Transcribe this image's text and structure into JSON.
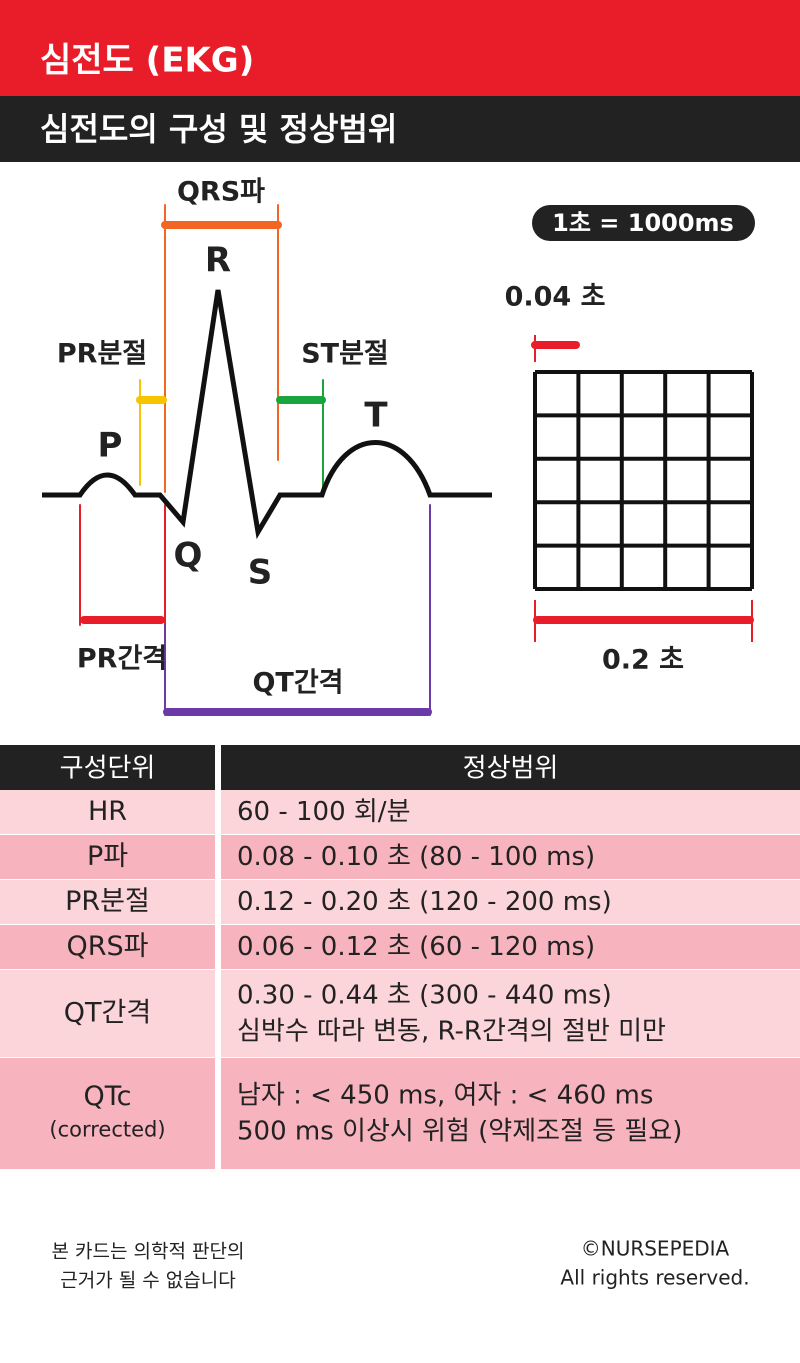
{
  "header": {
    "title": "심전도 (EKG)",
    "subtitle": "심전도의 구성 및 정상범위"
  },
  "diagram": {
    "qrs_wave": "QRS파",
    "r": "R",
    "pr_segment": "PR분절",
    "st_segment": "ST분절",
    "p": "P",
    "t": "T",
    "q": "Q",
    "s": "S",
    "pr_interval": "PR간격",
    "qt_interval": "QT간격",
    "scale": "1초 = 1000ms",
    "small_box": "0.04 초",
    "large_box": "0.2 초"
  },
  "table": {
    "columns": [
      "구성단위",
      "정상범위"
    ],
    "rows": [
      {
        "component": [
          "HR"
        ],
        "range": [
          "60 - 100 회/분"
        ]
      },
      {
        "component": [
          "P파"
        ],
        "range": [
          "0.08 - 0.10  초 (80 - 100 ms)"
        ]
      },
      {
        "component": [
          "PR분절"
        ],
        "range": [
          "0.12 - 0.20  초 (120 - 200 ms)"
        ]
      },
      {
        "component": [
          "QRS파"
        ],
        "range": [
          "0.06 - 0.12  초 (60 - 120 ms)"
        ]
      },
      {
        "component": [
          "QT간격"
        ],
        "range": [
          "0.30 - 0.44  초 (300 - 440 ms)",
          "심박수 따라 변동, R-R간격의 절반 미만"
        ]
      },
      {
        "component": [
          "QTc",
          "(corrected)"
        ],
        "range": [
          "남자 : < 450 ms, 여자 : < 460 ms",
          "500 ms 이상시 위험 (약제조절 등 필요)"
        ]
      }
    ]
  },
  "footer": {
    "disclaimer": [
      "본 카드는 의학적 판단의",
      "근거가 될 수 없습니다"
    ],
    "copyright": [
      "©NURSEPEDIA",
      "All rights reserved."
    ]
  }
}
